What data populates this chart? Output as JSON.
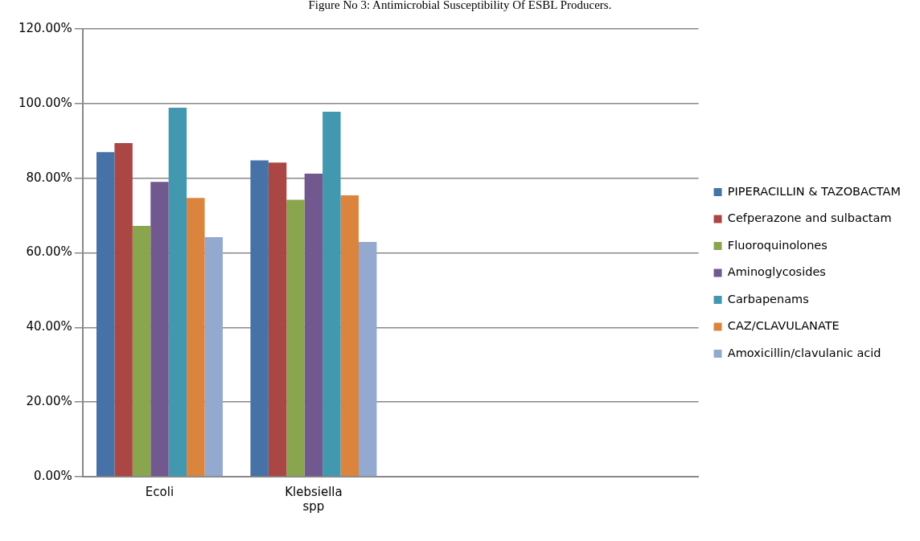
{
  "chart_data": {
    "type": "bar",
    "title": "Figure No 3: Antimicrobial Susceptibility Of ESBL Producers.",
    "categories": [
      "Ecoli",
      "Klebsiella spp",
      null,
      null
    ],
    "series": [
      {
        "name": "PIPERACILLIN & TAZOBACTAM",
        "color": "#4672a8",
        "values": [
          87.0,
          84.8,
          null,
          null
        ]
      },
      {
        "name": "Cefperazone and sulbactam",
        "color": "#aa4643",
        "values": [
          89.4,
          84.2,
          null,
          null
        ]
      },
      {
        "name": "Fluoroquinolones",
        "color": "#89a54e",
        "values": [
          67.2,
          74.2,
          null,
          null
        ]
      },
      {
        "name": "Aminoglycosides",
        "color": "#71588f",
        "values": [
          79.0,
          81.2,
          null,
          null
        ]
      },
      {
        "name": "Carbapenams",
        "color": "#4198af",
        "values": [
          98.9,
          97.8,
          null,
          null
        ]
      },
      {
        "name": "CAZ/CLAVULANATE",
        "color": "#db843d",
        "values": [
          74.7,
          75.4,
          null,
          null
        ]
      },
      {
        "name": "Amoxicillin/clavulanic acid",
        "color": "#93a9cf",
        "values": [
          64.2,
          62.9,
          null,
          null
        ]
      }
    ],
    "ylim": [
      0,
      120
    ],
    "yticks": [
      {
        "value": 0,
        "label": "0.00%"
      },
      {
        "value": 20,
        "label": "20.00%"
      },
      {
        "value": 40,
        "label": "40.00%"
      },
      {
        "value": 60,
        "label": "60.00%"
      },
      {
        "value": 80,
        "label": "80.00%"
      },
      {
        "value": 100,
        "label": "100.00%"
      },
      {
        "value": 120,
        "label": "120.00%"
      }
    ],
    "grid": "y",
    "legend": "right"
  }
}
